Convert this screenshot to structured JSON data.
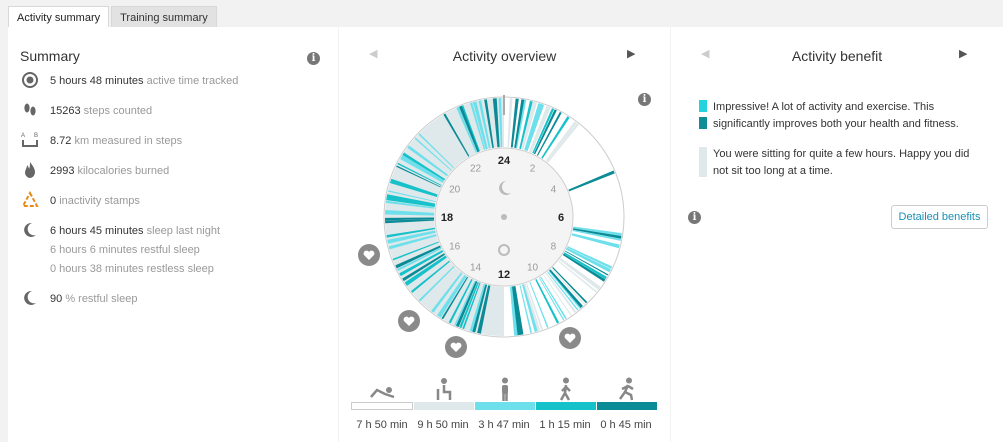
{
  "tabs": [
    "Activity summary",
    "Training summary"
  ],
  "summary": {
    "title": "Summary",
    "rows": [
      {
        "value": "5 hours 48 minutes",
        "label": "active time tracked",
        "icon": "timer-icon"
      },
      {
        "value": "15263",
        "label": "steps counted",
        "icon": "footprints-icon"
      },
      {
        "value": "8.72",
        "label": "km measured in steps",
        "icon": "distance-icon"
      },
      {
        "value": "2993",
        "label": "kilocalories burned",
        "icon": "flame-icon"
      },
      {
        "value": "0",
        "label": "inactivity stamps",
        "icon": "inactivity-stamp-icon"
      },
      {
        "value": "6 hours 45 minutes",
        "label": "sleep last night",
        "icon": "moon-icon"
      },
      {
        "value": "90",
        "label": "% restful sleep",
        "icon": "moon-icon"
      }
    ],
    "sleep_details": [
      "6 hours 6 minutes restful sleep",
      "0 hours 38 minutes restless sleep"
    ]
  },
  "overview": {
    "title": "Activity overview",
    "hours": [
      "24",
      "2",
      "4",
      "6",
      "8",
      "10",
      "12",
      "14",
      "16",
      "18",
      "20",
      "22"
    ],
    "legend": [
      {
        "label": "7 h 50 min",
        "color": "#ffffff",
        "icon": "lying-icon"
      },
      {
        "label": "9 h 50 min",
        "color": "#dfe8ea",
        "icon": "sitting-icon"
      },
      {
        "label": "3 h 47 min",
        "color": "#6ee0ec",
        "icon": "standing-icon"
      },
      {
        "label": "1 h 15 min",
        "color": "#16c2c9",
        "icon": "walking-icon"
      },
      {
        "label": "0 h 45 min",
        "color": "#0b8b96",
        "icon": "running-icon"
      }
    ]
  },
  "benefit": {
    "title": "Activity benefit",
    "colors": {
      "primary": "#24d3de",
      "dark": "#0f8e98",
      "light": "#dfe9eb"
    },
    "message_active": "Impressive! A lot of activity and exercise. This significantly improves both your health and fitness.",
    "message_sitting": "You were sitting for quite a few hours. Happy you did not sit too long at a time.",
    "button": "Detailed benefits"
  },
  "colors": {
    "accent": "#1a8fb5"
  }
}
